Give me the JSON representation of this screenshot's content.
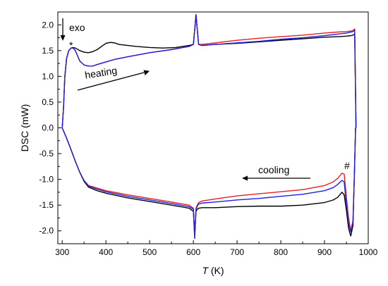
{
  "chart_data": {
    "type": "line",
    "title": "",
    "xlabel_var": "T",
    "xlabel_unit": " (K)",
    "ylabel": "DSC (mW)",
    "xlim": [
      290,
      1000
    ],
    "ylim": [
      -2.25,
      2.25
    ],
    "xticks": [
      300,
      400,
      500,
      600,
      700,
      800,
      900,
      1000
    ],
    "yticks": [
      -2.0,
      -1.5,
      -1.0,
      -0.5,
      0.0,
      0.5,
      1.0,
      1.5,
      2.0
    ],
    "ytick_labels": [
      "-2.0",
      "-1.5",
      "-1.0",
      "-0.5",
      "0.0",
      "0.5",
      "1.0",
      "1.5",
      "2.0"
    ],
    "grid": false,
    "legend": "none",
    "annotations": {
      "exo": "exo",
      "heating": "heating",
      "cooling": "cooling",
      "star": "*",
      "hash": "#"
    },
    "series": [
      {
        "color": "#000000",
        "heating_x": [
          300,
          303,
          306,
          310,
          315,
          320,
          325,
          330,
          340,
          350,
          360,
          370,
          380,
          390,
          400,
          410,
          420,
          430,
          450,
          470,
          500,
          530,
          560,
          590,
          600,
          603,
          606,
          609,
          612,
          620,
          650,
          700,
          750,
          800,
          850,
          900,
          930,
          950,
          960,
          965,
          969,
          972
        ],
        "heating_y": [
          0.0,
          0.4,
          1.0,
          1.35,
          1.5,
          1.55,
          1.56,
          1.55,
          1.5,
          1.47,
          1.46,
          1.48,
          1.52,
          1.58,
          1.64,
          1.66,
          1.65,
          1.62,
          1.6,
          1.58,
          1.56,
          1.55,
          1.56,
          1.6,
          1.62,
          1.9,
          2.2,
          1.9,
          1.62,
          1.6,
          1.62,
          1.64,
          1.67,
          1.7,
          1.73,
          1.76,
          1.77,
          1.78,
          1.79,
          1.8,
          1.82,
          0.0
        ],
        "cooling_x": [
          300,
          310,
          320,
          330,
          340,
          350,
          360,
          380,
          400,
          450,
          500,
          550,
          590,
          600,
          603,
          606,
          609,
          612,
          620,
          650,
          700,
          750,
          800,
          850,
          900,
          920,
          930,
          940,
          945,
          950,
          955,
          960,
          965,
          968,
          971,
          972
        ],
        "cooling_y": [
          0.0,
          -0.2,
          -0.42,
          -0.65,
          -0.86,
          -1.04,
          -1.15,
          -1.22,
          -1.27,
          -1.36,
          -1.43,
          -1.5,
          -1.56,
          -1.62,
          -2.1,
          -1.62,
          -1.58,
          -1.56,
          -1.55,
          -1.55,
          -1.53,
          -1.52,
          -1.52,
          -1.5,
          -1.45,
          -1.4,
          -1.35,
          -1.25,
          -1.3,
          -1.6,
          -1.95,
          -2.1,
          -1.9,
          -1.0,
          0.0,
          0.0
        ]
      },
      {
        "color": "#e41e1e",
        "heating_x": [
          300,
          303,
          306,
          310,
          315,
          320,
          325,
          330,
          335,
          340,
          350,
          360,
          370,
          380,
          400,
          420,
          450,
          500,
          550,
          590,
          600,
          603,
          606,
          609,
          612,
          620,
          650,
          700,
          750,
          800,
          850,
          900,
          930,
          950,
          960,
          965,
          969,
          972
        ],
        "heating_y": [
          0.0,
          0.4,
          1.0,
          1.35,
          1.5,
          1.55,
          1.55,
          1.5,
          1.4,
          1.3,
          1.22,
          1.2,
          1.2,
          1.23,
          1.28,
          1.33,
          1.38,
          1.46,
          1.52,
          1.58,
          1.62,
          1.9,
          2.2,
          1.9,
          1.62,
          1.62,
          1.65,
          1.7,
          1.74,
          1.77,
          1.8,
          1.84,
          1.86,
          1.87,
          1.88,
          1.89,
          1.92,
          0.0
        ],
        "cooling_x": [
          300,
          310,
          320,
          330,
          340,
          350,
          360,
          380,
          400,
          450,
          500,
          550,
          590,
          600,
          603,
          606,
          609,
          612,
          620,
          650,
          700,
          750,
          800,
          850,
          900,
          920,
          930,
          940,
          945,
          950,
          955,
          960,
          965,
          968,
          971,
          972
        ],
        "cooling_y": [
          0.0,
          -0.2,
          -0.42,
          -0.65,
          -0.86,
          -1.02,
          -1.12,
          -1.17,
          -1.22,
          -1.3,
          -1.37,
          -1.44,
          -1.5,
          -1.56,
          -2.1,
          -1.56,
          -1.5,
          -1.45,
          -1.42,
          -1.38,
          -1.32,
          -1.28,
          -1.24,
          -1.2,
          -1.12,
          -1.05,
          -0.98,
          -0.88,
          -0.9,
          -1.35,
          -1.75,
          -2.0,
          -1.8,
          -1.0,
          0.0,
          0.0
        ]
      },
      {
        "color": "#1f1fe0",
        "heating_x": [
          300,
          303,
          306,
          310,
          315,
          320,
          325,
          330,
          335,
          340,
          350,
          360,
          370,
          380,
          400,
          420,
          450,
          500,
          550,
          590,
          600,
          603,
          606,
          609,
          612,
          620,
          650,
          700,
          750,
          800,
          850,
          900,
          930,
          950,
          960,
          965,
          969,
          972
        ],
        "heating_y": [
          0.0,
          0.4,
          1.0,
          1.35,
          1.5,
          1.55,
          1.55,
          1.5,
          1.4,
          1.3,
          1.22,
          1.2,
          1.2,
          1.23,
          1.28,
          1.33,
          1.38,
          1.46,
          1.52,
          1.58,
          1.62,
          1.9,
          2.2,
          1.9,
          1.62,
          1.6,
          1.62,
          1.65,
          1.68,
          1.72,
          1.75,
          1.79,
          1.82,
          1.84,
          1.86,
          1.87,
          1.9,
          0.0
        ],
        "cooling_x": [
          300,
          310,
          320,
          330,
          340,
          350,
          360,
          380,
          400,
          450,
          500,
          550,
          590,
          600,
          603,
          606,
          609,
          612,
          620,
          650,
          700,
          750,
          800,
          850,
          900,
          920,
          930,
          940,
          945,
          950,
          955,
          960,
          965,
          968,
          971,
          972
        ],
        "cooling_y": [
          0.0,
          -0.2,
          -0.42,
          -0.65,
          -0.86,
          -1.03,
          -1.13,
          -1.19,
          -1.24,
          -1.33,
          -1.4,
          -1.47,
          -1.53,
          -1.58,
          -2.15,
          -1.58,
          -1.52,
          -1.48,
          -1.46,
          -1.44,
          -1.4,
          -1.37,
          -1.33,
          -1.29,
          -1.22,
          -1.16,
          -1.1,
          -1.02,
          -1.05,
          -1.5,
          -1.85,
          -2.02,
          -1.85,
          -1.0,
          0.0,
          0.0
        ]
      }
    ]
  }
}
